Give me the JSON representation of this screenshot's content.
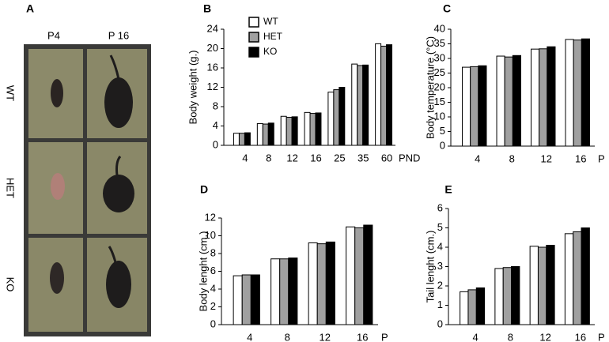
{
  "photo_panel": {
    "label": "A",
    "columns": [
      "P4",
      "P 16"
    ],
    "rows": [
      "WT",
      "HET",
      "KO"
    ]
  },
  "chart_data": [
    {
      "type": "bar",
      "label": "B",
      "ylabel": "Body weight (g.)",
      "xlabel": "PND",
      "categories": [
        "4",
        "8",
        "12",
        "16",
        "25",
        "35",
        "60"
      ],
      "series": [
        {
          "name": "WT",
          "color": "#ffffff",
          "values": [
            2.5,
            4.5,
            6,
            6.8,
            11,
            16.8,
            21
          ]
        },
        {
          "name": "HET",
          "color": "#a0a0a0",
          "values": [
            2.5,
            4.4,
            5.8,
            6.6,
            11.5,
            16.5,
            20.5
          ]
        },
        {
          "name": "KO",
          "color": "#000000",
          "values": [
            2.6,
            4.6,
            5.9,
            6.7,
            12,
            16.6,
            20.8
          ]
        }
      ],
      "ylim": [
        0,
        24
      ],
      "yticks": [
        0,
        4,
        8,
        12,
        16,
        20,
        24
      ]
    },
    {
      "type": "bar",
      "label": "C",
      "ylabel": "Body temperature (°C)",
      "xlabel": "P",
      "categories": [
        "4",
        "8",
        "12",
        "16"
      ],
      "series": [
        {
          "color": "#ffffff",
          "values": [
            27,
            30.8,
            33.2,
            36.5
          ]
        },
        {
          "color": "#a0a0a0",
          "values": [
            27.2,
            30.5,
            33.3,
            36.3
          ]
        },
        {
          "color": "#000000",
          "values": [
            27.5,
            31,
            34,
            36.7
          ]
        }
      ],
      "ylim": [
        0,
        40
      ],
      "yticks": [
        0,
        5,
        10,
        15,
        20,
        25,
        30,
        35,
        40
      ]
    },
    {
      "type": "bar",
      "label": "D",
      "ylabel": "Body  lenght (cm.)",
      "xlabel": "P",
      "categories": [
        "4",
        "8",
        "12",
        "16"
      ],
      "series": [
        {
          "color": "#ffffff",
          "values": [
            5.5,
            7.4,
            9.2,
            11
          ]
        },
        {
          "color": "#a0a0a0",
          "values": [
            5.6,
            7.4,
            9.1,
            10.9
          ]
        },
        {
          "color": "#000000",
          "values": [
            5.6,
            7.5,
            9.3,
            11.2
          ]
        }
      ],
      "ylim": [
        0,
        12
      ],
      "yticks": [
        0,
        2,
        4,
        6,
        8,
        10,
        12
      ]
    },
    {
      "type": "bar",
      "label": "E",
      "ylabel": "Tail  lenght (cm.)",
      "xlabel": "P",
      "categories": [
        "4",
        "8",
        "12",
        "16"
      ],
      "series": [
        {
          "color": "#ffffff",
          "values": [
            1.7,
            2.9,
            4.05,
            4.7
          ]
        },
        {
          "color": "#a0a0a0",
          "values": [
            1.8,
            2.95,
            4.0,
            4.8
          ]
        },
        {
          "color": "#000000",
          "values": [
            1.9,
            3.0,
            4.1,
            5.0
          ]
        }
      ],
      "ylim": [
        0,
        6
      ],
      "yticks": [
        0,
        1,
        2,
        3,
        4,
        5,
        6
      ]
    }
  ]
}
